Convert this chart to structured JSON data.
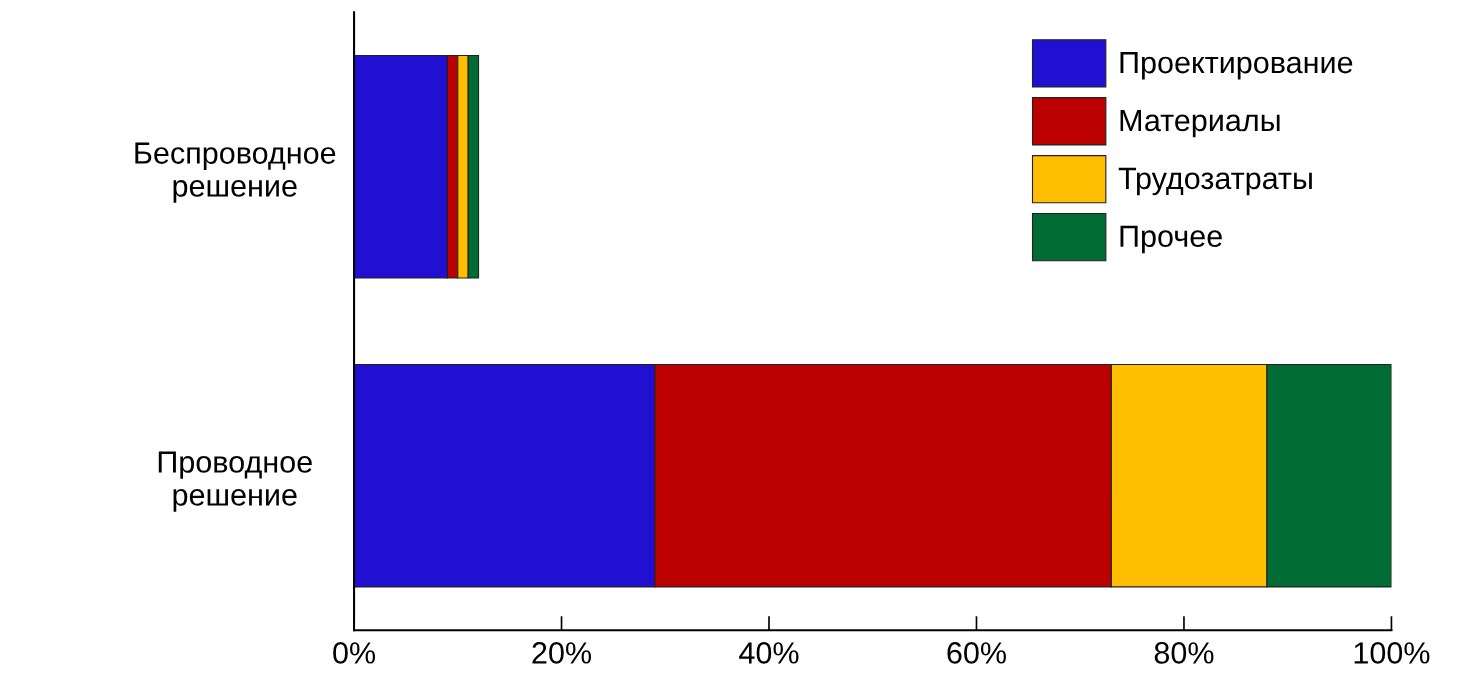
{
  "chart_data": {
    "type": "bar",
    "orientation": "horizontal",
    "stacked": true,
    "categories": [
      "Беспроводное\nрешение",
      "Проводное\nрешение"
    ],
    "series": [
      {
        "name": "Проектирование",
        "color": "#2210d2",
        "values": [
          9,
          29
        ]
      },
      {
        "name": "Материалы",
        "color": "#bb0000",
        "values": [
          1,
          44
        ]
      },
      {
        "name": "Трудозатраты",
        "color": "#ffbe00",
        "values": [
          1,
          15
        ]
      },
      {
        "name": "Прочее",
        "color": "#006b33",
        "values": [
          1,
          12
        ]
      }
    ],
    "xlim": [
      0,
      100
    ],
    "xticks": [
      {
        "value": 0,
        "label": "0%"
      },
      {
        "value": 20,
        "label": "20%"
      },
      {
        "value": 40,
        "label": "40%"
      },
      {
        "value": 60,
        "label": "60%"
      },
      {
        "value": 80,
        "label": "80%"
      },
      {
        "value": 100,
        "label": "100%"
      }
    ],
    "legend": "top right",
    "grid": false
  }
}
